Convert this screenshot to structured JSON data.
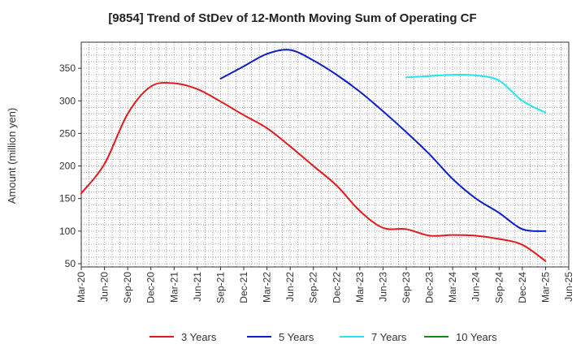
{
  "chart_data": {
    "type": "line",
    "title": "[9854]  Trend of StDev of 12-Month Moving Sum of Operating CF",
    "ylabel": "Amount (million yen)",
    "xlabel": "",
    "x": [
      "Mar-20",
      "Jun-20",
      "Sep-20",
      "Dec-20",
      "Mar-21",
      "Jun-21",
      "Sep-21",
      "Dec-21",
      "Mar-22",
      "Jun-22",
      "Sep-22",
      "Dec-22",
      "Mar-23",
      "Jun-23",
      "Sep-23",
      "Dec-23",
      "Mar-24",
      "Jun-24",
      "Sep-24",
      "Dec-24",
      "Mar-25",
      "Jun-25"
    ],
    "ylim": [
      45,
      390
    ],
    "yticks": [
      50,
      100,
      150,
      200,
      250,
      300,
      350
    ],
    "grid": true,
    "legend_position": "bottom",
    "series": [
      {
        "name": "3 Years",
        "color": "#e31a1c",
        "points": [
          [
            "Mar-20",
            158
          ],
          [
            "Jun-20",
            203
          ],
          [
            "Sep-20",
            280
          ],
          [
            "Dec-20",
            322
          ],
          [
            "Mar-21",
            327
          ],
          [
            "Jun-21",
            318
          ],
          [
            "Sep-21",
            299
          ],
          [
            "Dec-21",
            278
          ],
          [
            "Mar-22",
            258
          ],
          [
            "Jun-22",
            230
          ],
          [
            "Sep-22",
            200
          ],
          [
            "Dec-22",
            170
          ],
          [
            "Mar-23",
            131
          ],
          [
            "Jun-23",
            105
          ],
          [
            "Sep-23",
            103
          ],
          [
            "Dec-23",
            93
          ],
          [
            "Mar-24",
            94
          ],
          [
            "Jun-24",
            93
          ],
          [
            "Sep-24",
            88
          ],
          [
            "Dec-24",
            79
          ],
          [
            "Mar-25",
            54
          ]
        ]
      },
      {
        "name": "5 Years",
        "color": "#0a1fc8",
        "points": [
          [
            "Sep-21",
            334
          ],
          [
            "Dec-21",
            353
          ],
          [
            "Mar-22",
            372
          ],
          [
            "Jun-22",
            378
          ],
          [
            "Sep-22",
            362
          ],
          [
            "Dec-22",
            340
          ],
          [
            "Mar-23",
            314
          ],
          [
            "Jun-23",
            284
          ],
          [
            "Sep-23",
            252
          ],
          [
            "Dec-23",
            218
          ],
          [
            "Mar-24",
            180
          ],
          [
            "Jun-24",
            150
          ],
          [
            "Sep-24",
            128
          ],
          [
            "Dec-24",
            103
          ],
          [
            "Mar-25",
            100
          ]
        ]
      },
      {
        "name": "7 Years",
        "color": "#22e5f0",
        "points": [
          [
            "Sep-23",
            336
          ],
          [
            "Dec-23",
            338
          ],
          [
            "Mar-24",
            340
          ],
          [
            "Jun-24",
            339
          ],
          [
            "Sep-24",
            331
          ],
          [
            "Dec-24",
            300
          ],
          [
            "Mar-25",
            282
          ]
        ]
      },
      {
        "name": "10 Years",
        "color": "#1a8a1a",
        "points": []
      }
    ]
  }
}
